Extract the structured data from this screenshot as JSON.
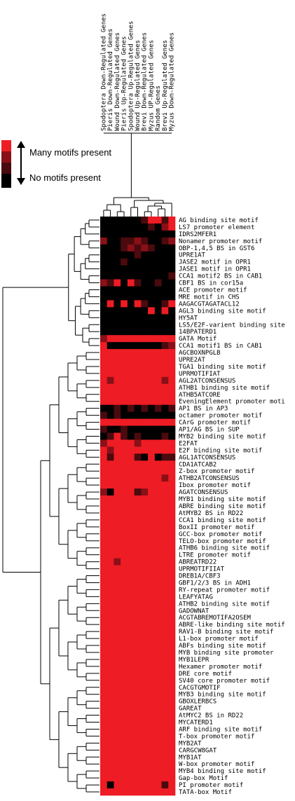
{
  "chart_data": {
    "type": "heatmap",
    "columns": [
      "Spodoptera Down-Regulated Genes",
      "Pieris Down-Regulated Genes",
      "Wound Down-Regulated Genes",
      "Pieris Up-Regulated Genes",
      "Spodoptera Up-Regulated Genes",
      "Wound Up-Regulated Genes",
      "Brevi Down-Regulated Genes",
      "Myzus UP-Regulated Genes",
      "Random Genes",
      "Brevi Up-Regulated Genes",
      "Myzus Down-Regulated Genes"
    ],
    "rows": [
      "AG binding site motif",
      "LS7 promoter element",
      "IDRS2MFER1",
      "Nonamer promoter motif",
      "OBP-1,4,5 BS in GST6",
      "UPRE1AT",
      "JASE2 motif in OPR1",
      "JASE1 motif in OPR1",
      "CCA1 motif2 BS in CAB1",
      "CBF1 BS in cor15a",
      "ACE promoter motif",
      "MRE motif in CHS",
      "AAGACGTAGATACL12",
      "AGL3 binding site motif",
      "HY5AT",
      "LS5/E2F-varient binding site",
      "14BPATERD1",
      "GATA Motif",
      "CCA1 motif1 BS in CAB1",
      "AGCBOXNPGLB",
      "UPRE2AT",
      "TGA1 binding site motif",
      "UPRMOTIFIAT",
      "AGL2ATCONSENSUS",
      "ATHB1 binding site motif",
      "ATHB5ATCORE",
      "EveningElement promoter moti",
      "AP1 BS in AP3",
      "octamer promoter motif",
      "CArG promoter motif",
      "AP1/AG BS in SUP",
      "MYB2 binding site motif",
      "E2FAT",
      "E2F binding site motif",
      "AGL1ATCONSENSUS",
      "CDA1ATCAB2",
      "Z-box promoter motif",
      "ATHB2ATCONSENSUS",
      "Ibox promoter motif",
      "AGATCONSENSUS",
      "MYB1 binding site motif",
      "ABRE binding site motif",
      "AtMYB2 BS in RD22",
      "CCA1 binding site motif",
      "BoxII promoter motif",
      "GCC-box promoter motif",
      "TELO-box promoter motif",
      "ATHB6 binding site motif",
      "LTRE promoter motif",
      "ABREATRD22",
      "UPRMOTIFIIAT",
      "DREB1A/CBF3",
      "GBF1/2/3 BS in ADH1",
      "RY-repeat promoter motif",
      "LEAFYATAG",
      "ATHB2 binding site motif",
      "GADOWNAT",
      "ACGTABREMOTIFA2OSEM",
      "ABRE-like binding site motif",
      "RAV1-B binding site motif",
      "L1-box promoter motif",
      "ABFs binding site motif",
      "MYB binding site promoter",
      "MYB1LEPR",
      "Hexamer promoter motif",
      "DRE core motif",
      "SV40 core promoter motif",
      "CACGTGMOTIF",
      "MYB3 binding site motif",
      "GBOXLERBCS",
      "GAREAT",
      "AtMYC2 BS in RD22",
      "MYCATERD1",
      "ARF binding site motif",
      "T-box promoter motif",
      "MYB2AT",
      "CARGCW8GAT",
      "MYB1AT",
      "W-box promoter motif",
      "MYB4 binding site motif",
      "Gap-box Motif",
      "PI promoter motif",
      "TATA-box Motif"
    ],
    "scale_levels": [
      0,
      1,
      2,
      3
    ],
    "scale_colors": [
      "#000000",
      "#4a0a0e",
      "#8a1018",
      "#ee1c24"
    ],
    "values": [
      [
        0,
        0,
        0,
        0,
        0,
        0,
        1,
        3,
        3,
        1,
        3
      ],
      [
        0,
        0,
        0,
        0,
        0,
        0,
        0,
        1,
        0,
        2,
        3
      ],
      [
        0,
        0,
        0,
        0,
        0,
        0,
        0,
        0,
        0,
        0,
        0
      ],
      [
        2,
        0,
        0,
        1,
        1,
        2,
        1,
        0,
        0,
        1,
        2
      ],
      [
        0,
        0,
        0,
        1,
        2,
        1,
        2,
        1,
        0,
        0,
        0
      ],
      [
        0,
        0,
        0,
        0,
        0,
        1,
        0,
        0,
        0,
        0,
        0
      ],
      [
        0,
        0,
        0,
        1,
        0,
        0,
        0,
        0,
        0,
        0,
        0
      ],
      [
        0,
        0,
        0,
        0,
        0,
        0,
        0,
        0,
        0,
        0,
        0
      ],
      [
        0,
        0,
        0,
        0,
        0,
        0,
        0,
        0,
        0,
        0,
        1
      ],
      [
        2,
        1,
        3,
        0,
        3,
        1,
        0,
        0,
        1,
        0,
        0
      ],
      [
        0,
        0,
        0,
        0,
        0,
        0,
        0,
        0,
        0,
        0,
        0
      ],
      [
        0,
        0,
        0,
        0,
        0,
        0,
        0,
        0,
        0,
        0,
        0
      ],
      [
        0,
        3,
        0,
        3,
        0,
        3,
        1,
        0,
        0,
        1,
        3
      ],
      [
        0,
        0,
        0,
        0,
        0,
        0,
        0,
        3,
        0,
        3,
        0
      ],
      [
        0,
        0,
        0,
        0,
        0,
        0,
        0,
        0,
        0,
        0,
        0
      ],
      [
        0,
        0,
        0,
        0,
        0,
        0,
        0,
        0,
        0,
        0,
        0
      ],
      [
        0,
        0,
        0,
        0,
        0,
        0,
        0,
        0,
        0,
        0,
        0
      ],
      [
        2,
        3,
        3,
        3,
        3,
        3,
        3,
        3,
        3,
        3,
        3
      ],
      [
        3,
        0,
        0,
        0,
        0,
        0,
        0,
        0,
        0,
        1,
        2
      ],
      [
        3,
        3,
        3,
        3,
        3,
        3,
        3,
        3,
        3,
        3,
        3
      ],
      [
        3,
        3,
        3,
        3,
        3,
        3,
        3,
        3,
        3,
        3,
        3
      ],
      [
        3,
        3,
        3,
        3,
        3,
        3,
        3,
        3,
        3,
        3,
        3
      ],
      [
        3,
        3,
        3,
        3,
        3,
        3,
        3,
        3,
        3,
        3,
        3
      ],
      [
        3,
        2,
        3,
        3,
        3,
        3,
        3,
        3,
        3,
        2,
        3
      ],
      [
        3,
        3,
        3,
        3,
        3,
        3,
        3,
        3,
        3,
        3,
        3
      ],
      [
        3,
        3,
        3,
        3,
        3,
        3,
        3,
        3,
        3,
        3,
        3
      ],
      [
        3,
        3,
        3,
        3,
        3,
        3,
        3,
        3,
        3,
        3,
        3
      ],
      [
        0,
        0,
        1,
        0,
        1,
        0,
        1,
        0,
        1,
        0,
        1
      ],
      [
        1,
        0,
        1,
        0,
        0,
        0,
        0,
        0,
        0,
        0,
        0
      ],
      [
        3,
        3,
        3,
        3,
        3,
        3,
        3,
        3,
        3,
        3,
        3
      ],
      [
        1,
        0,
        0,
        1,
        0,
        0,
        0,
        0,
        0,
        0,
        0
      ],
      [
        0,
        1,
        3,
        1,
        0,
        1,
        0,
        0,
        0,
        1,
        0
      ],
      [
        2,
        3,
        3,
        3,
        3,
        2,
        3,
        3,
        3,
        3,
        3
      ],
      [
        3,
        2,
        3,
        3,
        3,
        3,
        3,
        3,
        3,
        3,
        3
      ],
      [
        3,
        1,
        3,
        3,
        3,
        1,
        0,
        3,
        0,
        1,
        1
      ],
      [
        3,
        3,
        3,
        3,
        3,
        3,
        3,
        3,
        3,
        3,
        3
      ],
      [
        3,
        3,
        3,
        3,
        3,
        3,
        3,
        3,
        3,
        3,
        3
      ],
      [
        3,
        3,
        3,
        3,
        3,
        3,
        3,
        3,
        3,
        2,
        3
      ],
      [
        3,
        3,
        3,
        3,
        3,
        3,
        3,
        3,
        3,
        3,
        3
      ],
      [
        2,
        0,
        3,
        3,
        3,
        1,
        2,
        3,
        3,
        3,
        3
      ],
      [
        3,
        3,
        3,
        3,
        3,
        3,
        3,
        3,
        3,
        3,
        3
      ],
      [
        3,
        3,
        3,
        3,
        3,
        3,
        3,
        3,
        3,
        3,
        3
      ],
      [
        3,
        3,
        3,
        3,
        3,
        3,
        3,
        3,
        3,
        3,
        3
      ],
      [
        3,
        3,
        3,
        3,
        3,
        3,
        3,
        3,
        3,
        3,
        3
      ],
      [
        3,
        3,
        3,
        3,
        3,
        3,
        3,
        3,
        3,
        3,
        3
      ],
      [
        3,
        3,
        3,
        3,
        3,
        3,
        3,
        3,
        3,
        3,
        3
      ],
      [
        3,
        3,
        3,
        3,
        3,
        3,
        3,
        3,
        3,
        3,
        3
      ],
      [
        3,
        3,
        3,
        3,
        3,
        3,
        3,
        3,
        3,
        3,
        3
      ],
      [
        3,
        3,
        3,
        3,
        3,
        3,
        3,
        3,
        3,
        3,
        3
      ],
      [
        3,
        3,
        2,
        3,
        3,
        3,
        3,
        3,
        3,
        3,
        3
      ],
      [
        3,
        3,
        3,
        3,
        3,
        3,
        3,
        3,
        3,
        3,
        3
      ],
      [
        3,
        3,
        3,
        3,
        3,
        3,
        3,
        3,
        3,
        3,
        3
      ],
      [
        3,
        3,
        3,
        3,
        3,
        3,
        3,
        3,
        3,
        3,
        3
      ],
      [
        3,
        3,
        3,
        3,
        3,
        3,
        3,
        3,
        3,
        3,
        3
      ],
      [
        3,
        3,
        3,
        3,
        3,
        3,
        3,
        3,
        3,
        3,
        3
      ],
      [
        3,
        3,
        3,
        3,
        3,
        3,
        3,
        3,
        3,
        3,
        3
      ],
      [
        3,
        3,
        3,
        3,
        3,
        3,
        3,
        3,
        3,
        3,
        3
      ],
      [
        3,
        3,
        3,
        3,
        3,
        3,
        3,
        3,
        3,
        3,
        3
      ],
      [
        3,
        3,
        3,
        3,
        3,
        3,
        3,
        3,
        3,
        3,
        3
      ],
      [
        3,
        3,
        3,
        3,
        3,
        3,
        3,
        3,
        3,
        3,
        3
      ],
      [
        3,
        3,
        3,
        3,
        3,
        3,
        3,
        3,
        3,
        3,
        3
      ],
      [
        3,
        3,
        3,
        3,
        3,
        3,
        3,
        3,
        3,
        3,
        3
      ],
      [
        3,
        3,
        3,
        3,
        3,
        3,
        3,
        3,
        3,
        3,
        3
      ],
      [
        3,
        3,
        3,
        3,
        3,
        3,
        3,
        3,
        3,
        3,
        3
      ],
      [
        3,
        3,
        3,
        3,
        3,
        3,
        3,
        3,
        3,
        3,
        3
      ],
      [
        3,
        3,
        3,
        3,
        3,
        3,
        3,
        3,
        3,
        3,
        3
      ],
      [
        3,
        3,
        3,
        3,
        3,
        3,
        3,
        3,
        3,
        3,
        3
      ],
      [
        3,
        3,
        3,
        3,
        3,
        3,
        3,
        3,
        3,
        3,
        3
      ],
      [
        3,
        3,
        3,
        3,
        3,
        3,
        3,
        3,
        3,
        3,
        3
      ],
      [
        3,
        3,
        3,
        3,
        3,
        3,
        3,
        3,
        3,
        3,
        3
      ],
      [
        3,
        3,
        3,
        3,
        3,
        3,
        3,
        3,
        3,
        3,
        3
      ],
      [
        3,
        3,
        3,
        3,
        3,
        3,
        3,
        3,
        3,
        3,
        3
      ],
      [
        3,
        3,
        3,
        3,
        3,
        3,
        3,
        3,
        3,
        3,
        3
      ],
      [
        3,
        3,
        3,
        3,
        3,
        3,
        3,
        3,
        3,
        3,
        3
      ],
      [
        3,
        3,
        3,
        3,
        3,
        3,
        3,
        3,
        3,
        3,
        3
      ],
      [
        3,
        3,
        3,
        3,
        3,
        3,
        3,
        3,
        3,
        3,
        3
      ],
      [
        3,
        3,
        3,
        3,
        3,
        3,
        3,
        3,
        3,
        3,
        3
      ],
      [
        3,
        3,
        3,
        3,
        3,
        3,
        3,
        3,
        3,
        3,
        3
      ],
      [
        3,
        3,
        3,
        3,
        3,
        3,
        3,
        3,
        3,
        3,
        3
      ],
      [
        3,
        3,
        3,
        3,
        3,
        3,
        3,
        3,
        3,
        3,
        3
      ],
      [
        3,
        3,
        3,
        3,
        3,
        3,
        3,
        3,
        3,
        3,
        3
      ],
      [
        3,
        0,
        3,
        3,
        3,
        3,
        3,
        3,
        3,
        1,
        3
      ],
      [
        3,
        3,
        3,
        3,
        3,
        3,
        3,
        3,
        3,
        3,
        3
      ]
    ],
    "legend": {
      "high_label": "Many motifs present",
      "low_label": "No motifs present",
      "position": "top-left"
    }
  }
}
